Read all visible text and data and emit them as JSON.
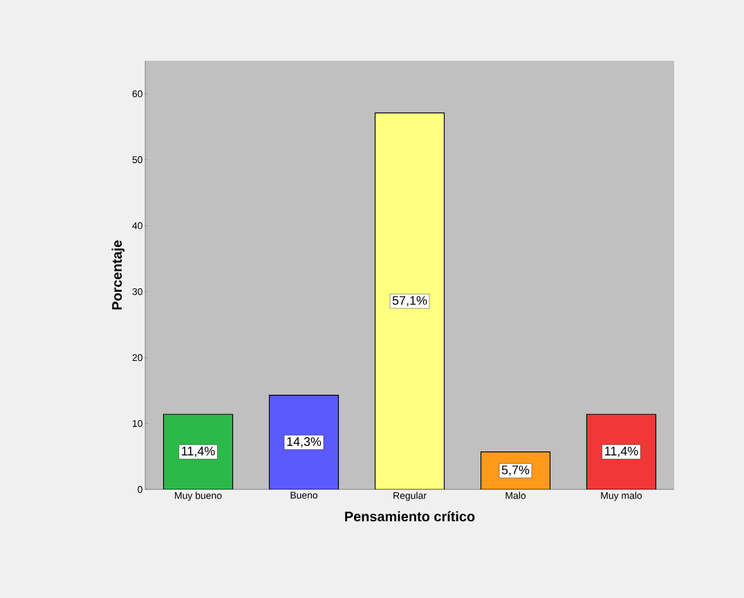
{
  "chart_data": {
    "type": "bar",
    "xlabel": "Pensamiento crítico",
    "ylabel": "Porcentaje",
    "categories": [
      "Muy bueno",
      "Bueno",
      "Regular",
      "Malo",
      "Muy malo"
    ],
    "values": [
      11.4,
      14.3,
      57.1,
      5.7,
      11.4
    ],
    "colors": [
      "#2db84a",
      "#5a5aff",
      "#ffff80",
      "#ff9a1a",
      "#f03838"
    ],
    "value_labels": [
      "11,4%",
      "14,3%",
      "57,1%",
      "5,7%",
      "11,4%"
    ],
    "ylim": [
      0,
      65
    ],
    "yticks": [
      0,
      10,
      20,
      30,
      40,
      50,
      60
    ]
  }
}
